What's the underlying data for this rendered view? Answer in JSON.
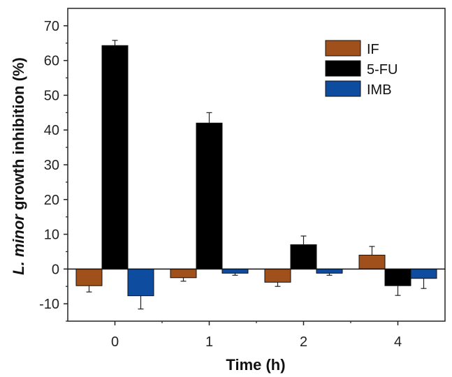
{
  "chart_data": {
    "type": "bar",
    "xlabel": "Time (h)",
    "ylabel_italic": "L. minor",
    "ylabel_rest": " growth inhibition (%)",
    "categories": [
      "0",
      "1",
      "2",
      "4"
    ],
    "ylim": [
      -15,
      75
    ],
    "yticks": [
      -10,
      0,
      10,
      20,
      30,
      40,
      50,
      60,
      70
    ],
    "ytick_labels": [
      "-10",
      "0",
      "10",
      "20",
      "30",
      "40",
      "50",
      "60",
      "70"
    ],
    "grid": false,
    "legend_position": "top-right",
    "series": [
      {
        "name": "IF",
        "color": "#a0501a",
        "values": [
          -4.8,
          -2.5,
          -3.8,
          4.0
        ],
        "errors": [
          1.8,
          1.0,
          1.2,
          2.5
        ]
      },
      {
        "name": "5-FU",
        "color": "#000000",
        "values": [
          64.3,
          42.0,
          7.0,
          -4.8
        ],
        "errors": [
          1.5,
          3.0,
          2.5,
          2.8
        ]
      },
      {
        "name": "IMB",
        "color": "#0e4ca0",
        "values": [
          -7.7,
          -1.2,
          -1.2,
          -2.7
        ],
        "errors": [
          3.8,
          0.6,
          0.6,
          2.9
        ]
      }
    ]
  }
}
